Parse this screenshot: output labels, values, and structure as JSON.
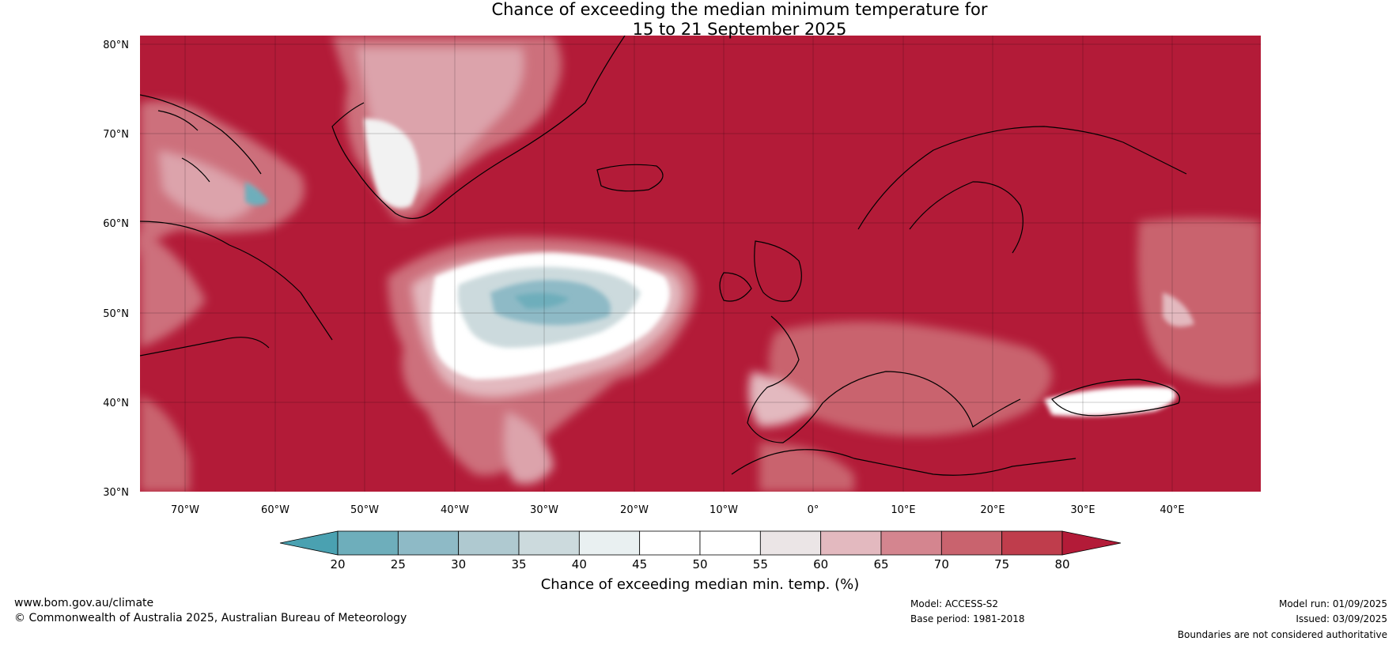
{
  "title": {
    "line1": "Chance of exceeding the median minimum temperature for",
    "line2": "15 to 21 September 2025"
  },
  "map": {
    "lat_labels": [
      "80°N",
      "70°N",
      "60°N",
      "50°N",
      "40°N",
      "30°N"
    ],
    "lon_labels": [
      "70°W",
      "60°W",
      "50°W",
      "40°W",
      "30°W",
      "20°W",
      "10°W",
      "0°",
      "10°E",
      "20°E",
      "30°E",
      "40°E"
    ],
    "colors": {
      "ocean_land_high": "#b31b38",
      "water_outline": "#000000"
    }
  },
  "colorbar": {
    "ticks": [
      "20",
      "25",
      "30",
      "35",
      "40",
      "45",
      "50",
      "55",
      "60",
      "65",
      "70",
      "75",
      "80"
    ],
    "colors": [
      "#4aa1b1",
      "#6eaebb",
      "#8ebac6",
      "#afc9d0",
      "#ccdadd",
      "#e9f0f1",
      "#ffffff",
      "#ffffff",
      "#ebe5e6",
      "#e3b9bf",
      "#d4858f",
      "#c9636e",
      "#bf3d4c",
      "#b31b38"
    ],
    "label": "Chance of exceeding median min. temp. (%)"
  },
  "footer": {
    "website": "www.bom.gov.au/climate",
    "copyright": "© Commonwealth of Australia 2025, Australian Bureau of Meteorology",
    "model": "Model: ACCESS-S2",
    "base_period": "Base period: 1981-2018",
    "model_run": "Model run: 01/09/2025",
    "issued": "Issued: 03/09/2025",
    "boundaries": "Boundaries are not considered authoritative"
  }
}
